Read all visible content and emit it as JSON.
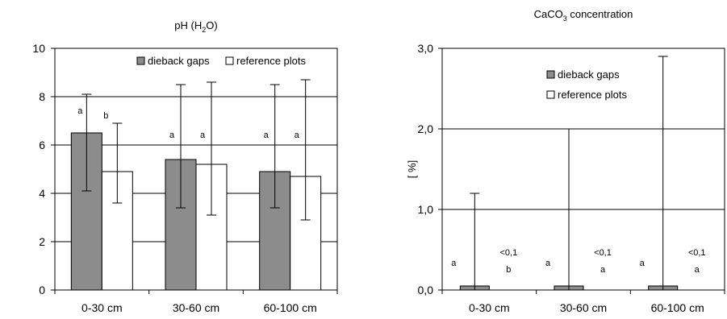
{
  "chart_data": [
    {
      "type": "bar",
      "title_parts": [
        "pH (H",
        "2",
        "O)"
      ],
      "categories": [
        "0-30 cm",
        "30-60 cm",
        "60-100 cm"
      ],
      "series": [
        {
          "name": "dieback gaps",
          "values": [
            6.5,
            5.4,
            4.9
          ],
          "err_low": [
            4.1,
            3.4,
            3.4
          ],
          "err_high": [
            8.1,
            8.5,
            8.5
          ],
          "sig": [
            "a",
            "a",
            "a"
          ],
          "color": "#8c8c8c"
        },
        {
          "name": "reference plots",
          "values": [
            4.9,
            5.2,
            4.7
          ],
          "err_low": [
            3.6,
            3.1,
            2.9
          ],
          "err_high": [
            6.9,
            8.6,
            8.7
          ],
          "sig": [
            "b",
            "a",
            "a"
          ],
          "color": "#ffffff"
        }
      ],
      "ylim": [
        0,
        10
      ],
      "yticks": [
        "0",
        "2",
        "4",
        "6",
        "8",
        "10"
      ],
      "ylabel": "",
      "grid": true,
      "legend": "top-right"
    },
    {
      "type": "bar",
      "title_parts": [
        "CaCO",
        "3",
        " concentration"
      ],
      "categories": [
        "0-30 cm",
        "30-60 cm",
        "60-100 cm"
      ],
      "series": [
        {
          "name": "dieback gaps",
          "values": [
            0.05,
            0.05,
            0.05
          ],
          "err_low": [
            0,
            0,
            0
          ],
          "err_high": [
            1.2,
            2.0,
            2.9
          ],
          "sig": [
            "a",
            "a",
            "a"
          ],
          "color": "#8c8c8c"
        },
        {
          "name": "reference plots",
          "values": [
            0,
            0,
            0
          ],
          "value_labels": [
            "<0,1",
            "<0,1",
            "<0,1"
          ],
          "sig": [
            "b",
            "a",
            "a"
          ],
          "color": "#ffffff"
        }
      ],
      "ylim": [
        0,
        3
      ],
      "yticks": [
        "0,0",
        "1,0",
        "2,0",
        "3,0"
      ],
      "ylabel": "[ %]",
      "grid": true,
      "legend": "top-center"
    }
  ]
}
